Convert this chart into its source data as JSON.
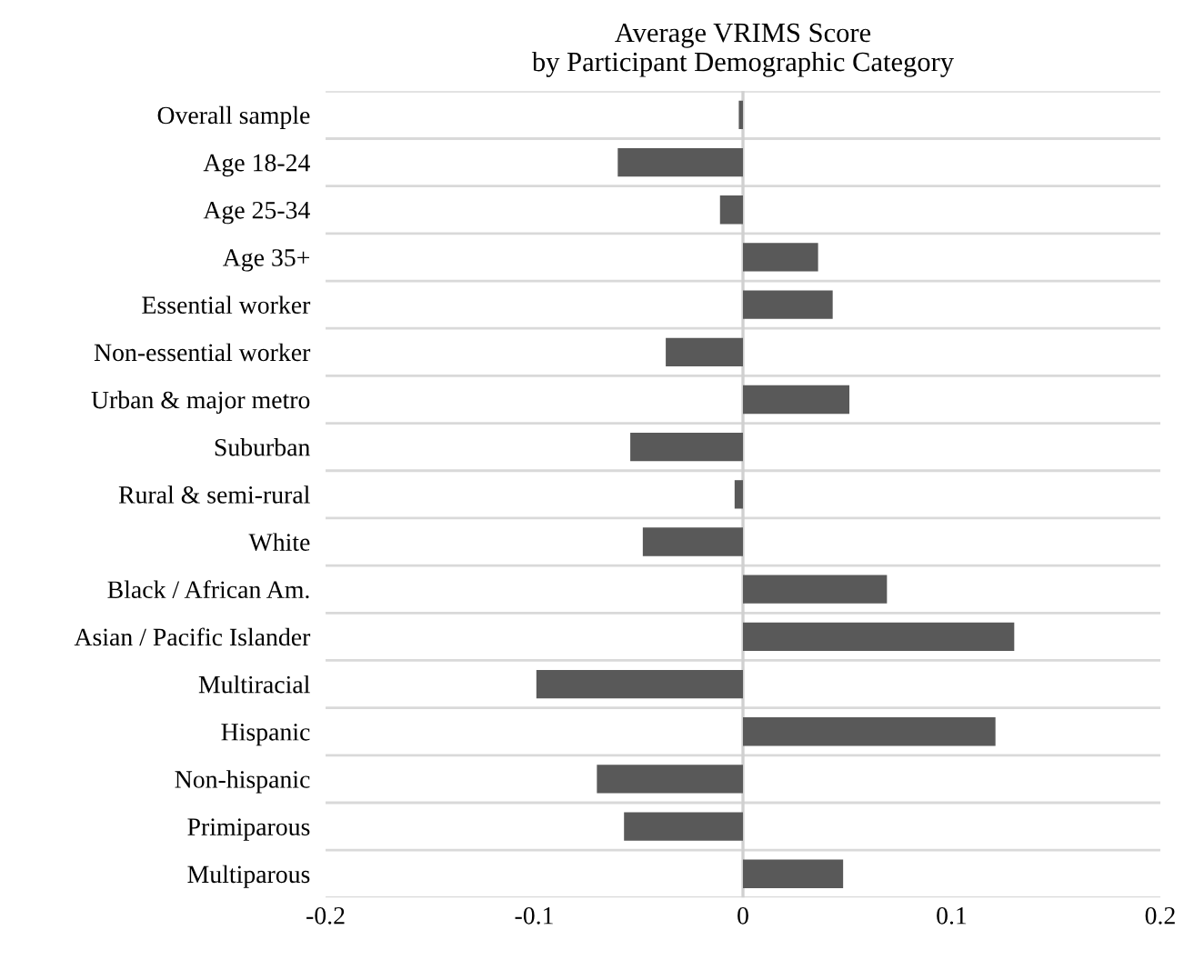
{
  "chart_data": {
    "type": "bar",
    "orientation": "horizontal",
    "title": "Average VRIMS Score\nby Participant Demographic Category",
    "categories": [
      "Overall sample",
      "Age 18-24",
      "Age 25-34",
      "Age 35+",
      "Essential worker",
      "Non-essential worker",
      "Urban & major metro",
      "Suburban",
      "Rural & semi-rural",
      "White",
      "Black / African Am.",
      "Asian / Pacific Islander",
      "Multiracial",
      "Hispanic",
      "Non-hispanic",
      "Primiparous",
      "Multiparous"
    ],
    "values": [
      -0.002,
      -0.06,
      -0.011,
      0.036,
      0.043,
      -0.037,
      0.051,
      -0.054,
      -0.004,
      -0.048,
      0.069,
      0.13,
      -0.099,
      0.121,
      -0.07,
      -0.057,
      0.048
    ],
    "color": "#595959",
    "xlim": [
      -0.2,
      0.2
    ],
    "xticks": [
      -0.2,
      -0.1,
      0,
      0.1,
      0.2
    ],
    "grid": "y"
  }
}
